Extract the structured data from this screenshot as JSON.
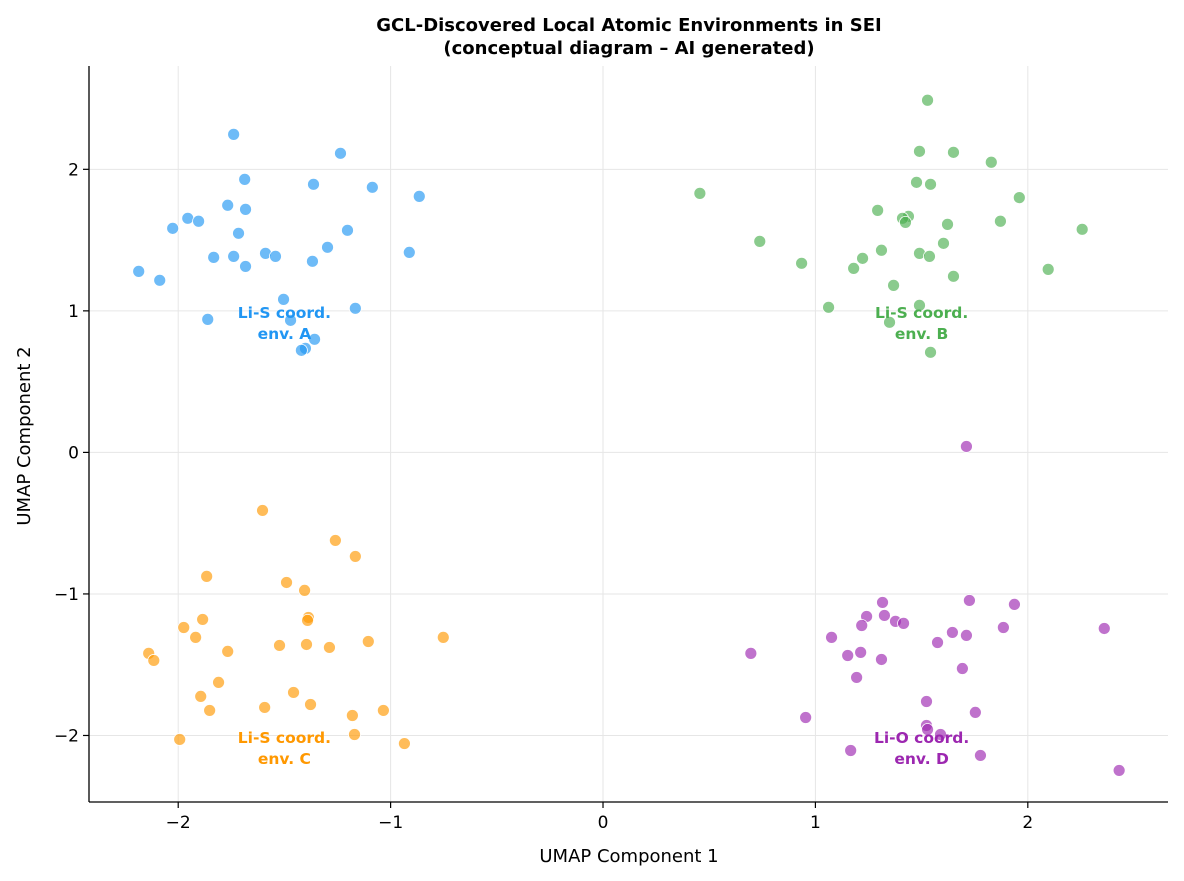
{
  "chart_data": {
    "type": "scatter",
    "title": [
      "GCL-Discovered Local Atomic Environments in SEI",
      "(conceptual diagram – AI generated)"
    ],
    "xlabel": "UMAP Component 1",
    "ylabel": "UMAP Component 2",
    "xlim": [
      -2.42,
      2.66
    ],
    "ylim": [
      -2.47,
      2.73
    ],
    "xticks": [
      -2,
      -1,
      0,
      1,
      2
    ],
    "yticks": [
      -2,
      -1,
      0,
      1,
      2
    ],
    "xtick_labels": [
      "−2",
      "−1",
      "0",
      "1",
      "2"
    ],
    "ytick_labels": [
      "−2",
      "−1",
      "0",
      "1",
      "2"
    ],
    "grid": true,
    "series": [
      {
        "color": "#2196F3",
        "label": [
          "Li-S coord.",
          "env. A"
        ],
        "label_pos": [
          -1.5,
          0.92
        ],
        "points": [
          [
            -1.739,
            2.247
          ],
          [
            -1.236,
            2.113
          ],
          [
            -1.687,
            1.929
          ],
          [
            -1.363,
            1.894
          ],
          [
            -1.086,
            1.873
          ],
          [
            -0.865,
            1.809
          ],
          [
            -1.955,
            1.654
          ],
          [
            -1.904,
            1.633
          ],
          [
            -1.767,
            1.746
          ],
          [
            -1.683,
            1.717
          ],
          [
            -2.026,
            1.583
          ],
          [
            -1.716,
            1.548
          ],
          [
            -1.203,
            1.569
          ],
          [
            -1.297,
            1.449
          ],
          [
            -1.833,
            1.378
          ],
          [
            -1.739,
            1.385
          ],
          [
            -1.589,
            1.406
          ],
          [
            -1.542,
            1.385
          ],
          [
            -1.368,
            1.35
          ],
          [
            -0.912,
            1.413
          ],
          [
            -1.683,
            1.314
          ],
          [
            -2.186,
            1.279
          ],
          [
            -2.087,
            1.216
          ],
          [
            -1.504,
            1.081
          ],
          [
            -1.166,
            1.018
          ],
          [
            -1.861,
            0.94
          ],
          [
            -1.471,
            0.933
          ],
          [
            -1.358,
            0.799
          ],
          [
            -1.401,
            0.735
          ],
          [
            -1.42,
            0.721
          ]
        ]
      },
      {
        "color": "#4CAF50",
        "label": [
          "Li-S coord.",
          "env. B"
        ],
        "label_pos": [
          1.5,
          0.92
        ],
        "points": [
          [
            1.528,
            2.488
          ],
          [
            1.49,
            2.127
          ],
          [
            1.65,
            2.12
          ],
          [
            1.828,
            2.05
          ],
          [
            1.476,
            1.908
          ],
          [
            1.542,
            1.894
          ],
          [
            1.96,
            1.8
          ],
          [
            0.456,
            1.83
          ],
          [
            1.293,
            1.71
          ],
          [
            1.438,
            1.668
          ],
          [
            1.41,
            1.654
          ],
          [
            1.424,
            1.625
          ],
          [
            1.622,
            1.611
          ],
          [
            1.871,
            1.633
          ],
          [
            0.738,
            1.491
          ],
          [
            1.603,
            1.477
          ],
          [
            1.311,
            1.428
          ],
          [
            1.49,
            1.406
          ],
          [
            1.537,
            1.385
          ],
          [
            1.222,
            1.371
          ],
          [
            0.935,
            1.336
          ],
          [
            1.18,
            1.3
          ],
          [
            1.65,
            1.244
          ],
          [
            2.256,
            1.576
          ],
          [
            2.096,
            1.293
          ],
          [
            1.368,
            1.18
          ],
          [
            1.062,
            1.025
          ],
          [
            1.49,
            1.039
          ],
          [
            1.349,
            0.919
          ],
          [
            1.542,
            0.707
          ]
        ]
      },
      {
        "color": "#FF9800",
        "label": [
          "Li-S coord.",
          "env. C"
        ],
        "label_pos": [
          -1.5,
          -2.08
        ],
        "points": [
          [
            -1.603,
            -0.41
          ],
          [
            -1.26,
            -0.622
          ],
          [
            -1.166,
            -0.735
          ],
          [
            -1.866,
            -0.876
          ],
          [
            -1.49,
            -0.919
          ],
          [
            -1.405,
            -0.975
          ],
          [
            -1.387,
            -1.166
          ],
          [
            -1.391,
            -1.187
          ],
          [
            -1.885,
            -1.18
          ],
          [
            -1.974,
            -1.237
          ],
          [
            -1.918,
            -1.307
          ],
          [
            -0.752,
            -1.307
          ],
          [
            -1.105,
            -1.336
          ],
          [
            -1.523,
            -1.364
          ],
          [
            -1.396,
            -1.357
          ],
          [
            -1.288,
            -1.378
          ],
          [
            -1.767,
            -1.406
          ],
          [
            -2.139,
            -1.42
          ],
          [
            -2.115,
            -1.47
          ],
          [
            -1.81,
            -1.625
          ],
          [
            -1.457,
            -1.696
          ],
          [
            -1.894,
            -1.724
          ],
          [
            -1.377,
            -1.781
          ],
          [
            -1.852,
            -1.823
          ],
          [
            -1.593,
            -1.802
          ],
          [
            -1.034,
            -1.823
          ],
          [
            -1.18,
            -1.859
          ],
          [
            -1.17,
            -1.993
          ],
          [
            -1.993,
            -2.028
          ],
          [
            -0.935,
            -2.057
          ]
        ]
      },
      {
        "color": "#9C27B0",
        "label": [
          "Li-O coord.",
          "env. D"
        ],
        "label_pos": [
          1.5,
          -2.08
        ],
        "points": [
          [
            1.711,
            0.042
          ],
          [
            1.316,
            -1.06
          ],
          [
            1.725,
            -1.046
          ],
          [
            1.937,
            -1.074
          ],
          [
            1.241,
            -1.159
          ],
          [
            1.325,
            -1.152
          ],
          [
            1.218,
            -1.223
          ],
          [
            1.377,
            -1.194
          ],
          [
            1.415,
            -1.208
          ],
          [
            2.36,
            -1.244
          ],
          [
            1.885,
            -1.237
          ],
          [
            1.645,
            -1.272
          ],
          [
            1.711,
            -1.293
          ],
          [
            1.076,
            -1.307
          ],
          [
            1.575,
            -1.343
          ],
          [
            0.696,
            -1.42
          ],
          [
            1.152,
            -1.435
          ],
          [
            1.213,
            -1.413
          ],
          [
            1.311,
            -1.463
          ],
          [
            1.692,
            -1.527
          ],
          [
            1.194,
            -1.59
          ],
          [
            1.523,
            -1.76
          ],
          [
            1.753,
            -1.837
          ],
          [
            0.954,
            -1.873
          ],
          [
            1.523,
            -1.929
          ],
          [
            1.528,
            -1.958
          ],
          [
            1.589,
            -1.993
          ],
          [
            1.166,
            -2.106
          ],
          [
            1.777,
            -2.141
          ],
          [
            2.43,
            -2.247
          ]
        ]
      }
    ]
  }
}
